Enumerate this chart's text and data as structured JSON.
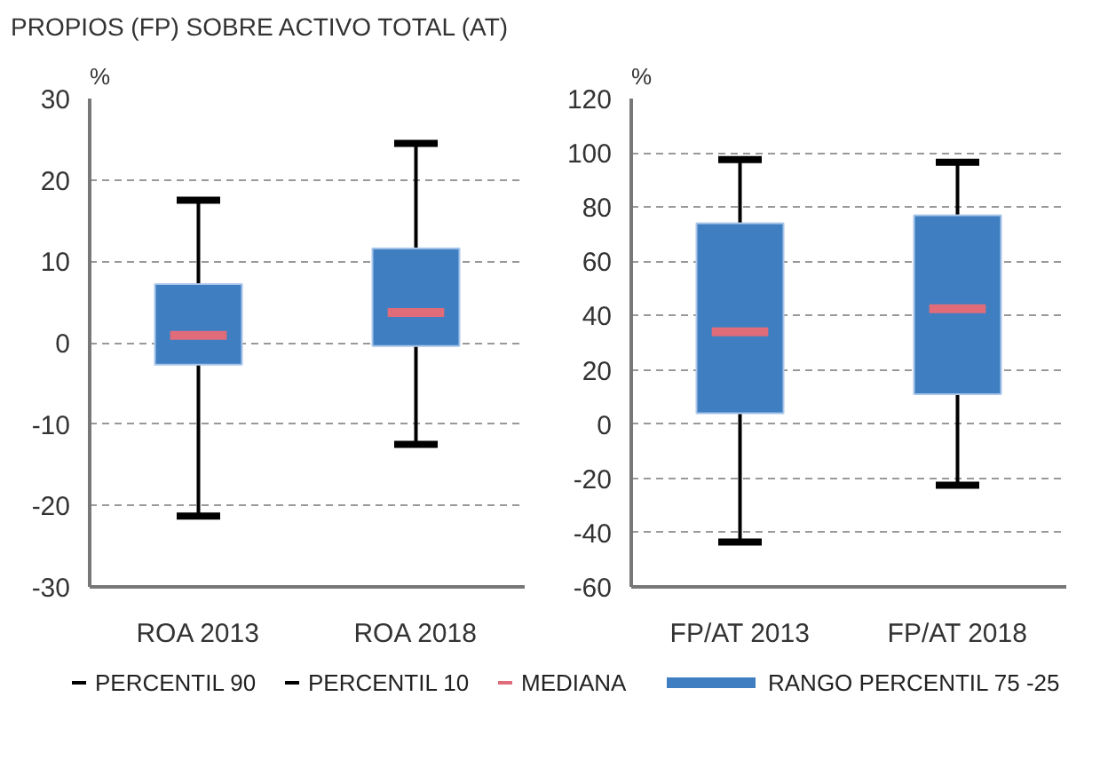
{
  "chart_data": [
    {
      "type": "box",
      "title": "PROPIOS (FP) SOBRE ACTIVO TOTAL (AT)",
      "ylabel": "%",
      "categories": [
        "ROA 2013",
        "ROA 2018"
      ],
      "ylim": [
        -30,
        30
      ],
      "yticks": [
        -30,
        -20,
        -10,
        0,
        10,
        20,
        30
      ],
      "grid": "y",
      "legend": "bottom",
      "annotations": [
        "PERCENTIL 90",
        "PERCENTIL 10",
        "MEDIANA"
      ],
      "series": [
        {
          "name": "RANGO PERCENTIL 75 -25",
          "color": "#3f7fc1",
          "boxes": [
            {
              "low": -21.3,
              "q1": -2.7,
              "median": 0.9,
              "q3": 7.2,
              "high": 17.5
            },
            {
              "low": -12.5,
              "q1": -0.4,
              "median": 3.7,
              "q3": 11.6,
              "high": 24.5
            }
          ]
        }
      ]
    },
    {
      "type": "box",
      "ylabel": "%",
      "categories": [
        "FP/AT 2013",
        "FP/AT 2018"
      ],
      "ylim": [
        -60,
        120
      ],
      "yticks": [
        -60,
        -40,
        -20,
        0,
        20,
        40,
        60,
        80,
        100,
        120
      ],
      "grid": "y",
      "series": [
        {
          "color": "#3f7fc1",
          "boxes": [
            {
              "low": -43.5,
              "q1": 4,
              "median": 34,
              "q3": 74,
              "high": 97.5
            },
            {
              "low": -22.5,
              "q1": 11,
              "median": 42.5,
              "q3": 77,
              "high": 96.5
            }
          ]
        }
      ]
    }
  ]
}
